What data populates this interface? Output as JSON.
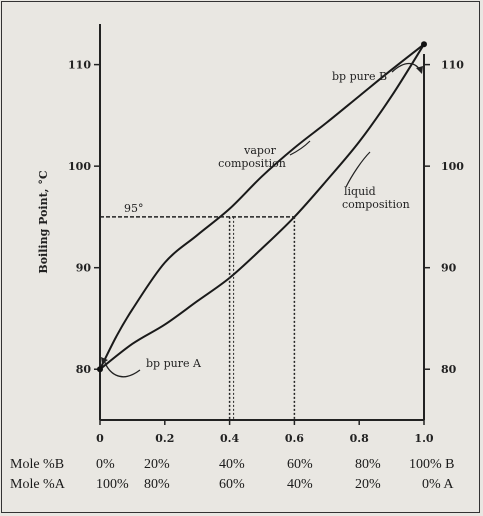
{
  "chart_data": {
    "type": "line",
    "ylabel": "Boiling Point, °C",
    "xlim": [
      0,
      1.0
    ],
    "ylim": [
      75,
      114
    ],
    "x_ticks": [
      "0",
      "0.2",
      "0.4",
      "0.6",
      "0.8",
      "1.0"
    ],
    "y_ticks_left": [
      "80",
      "90",
      "100",
      "110"
    ],
    "y_ticks_right": [
      "80",
      "90",
      "100",
      "110"
    ],
    "y_tick_values": [
      80,
      90,
      100,
      110
    ],
    "x_tick_values": [
      0,
      0.2,
      0.4,
      0.6,
      0.8,
      1.0
    ],
    "series": [
      {
        "name": "vapor composition",
        "x": [
          0,
          0.05,
          0.1,
          0.2,
          0.3,
          0.4,
          0.5,
          0.6,
          0.7,
          0.8,
          0.9,
          1.0
        ],
        "y": [
          80,
          83.2,
          85.9,
          90.5,
          93.2,
          95.8,
          99.0,
          101.8,
          104.3,
          106.9,
          109.5,
          112
        ]
      },
      {
        "name": "liquid composition",
        "x": [
          0,
          0.1,
          0.2,
          0.3,
          0.4,
          0.5,
          0.6,
          0.7,
          0.8,
          0.9,
          1.0
        ],
        "y": [
          80,
          82.5,
          84.4,
          86.7,
          89.0,
          91.9,
          95.0,
          98.6,
          102.4,
          106.9,
          112
        ]
      }
    ],
    "annotations": {
      "bp_pure_A": "bp pure A",
      "bp_pure_B": "bp pure B",
      "temp_line_label": "95°",
      "temp_line_y": 95,
      "vapor_x": 0.4,
      "liquid_x": 0.6,
      "vapor_label_1": "vapor",
      "vapor_label_2": "composition",
      "liquid_label_1": "liquid",
      "liquid_label_2": "composition"
    },
    "mole_table": {
      "row_B_label": "Mole %B",
      "row_B": [
        "0%",
        "20%",
        "40%",
        "60%",
        "80%",
        "100% B"
      ],
      "row_A_label": "Mole %A",
      "row_A": [
        "100%",
        "80%",
        "60%",
        "40%",
        "20%",
        "0%  A"
      ]
    },
    "grid": false
  }
}
